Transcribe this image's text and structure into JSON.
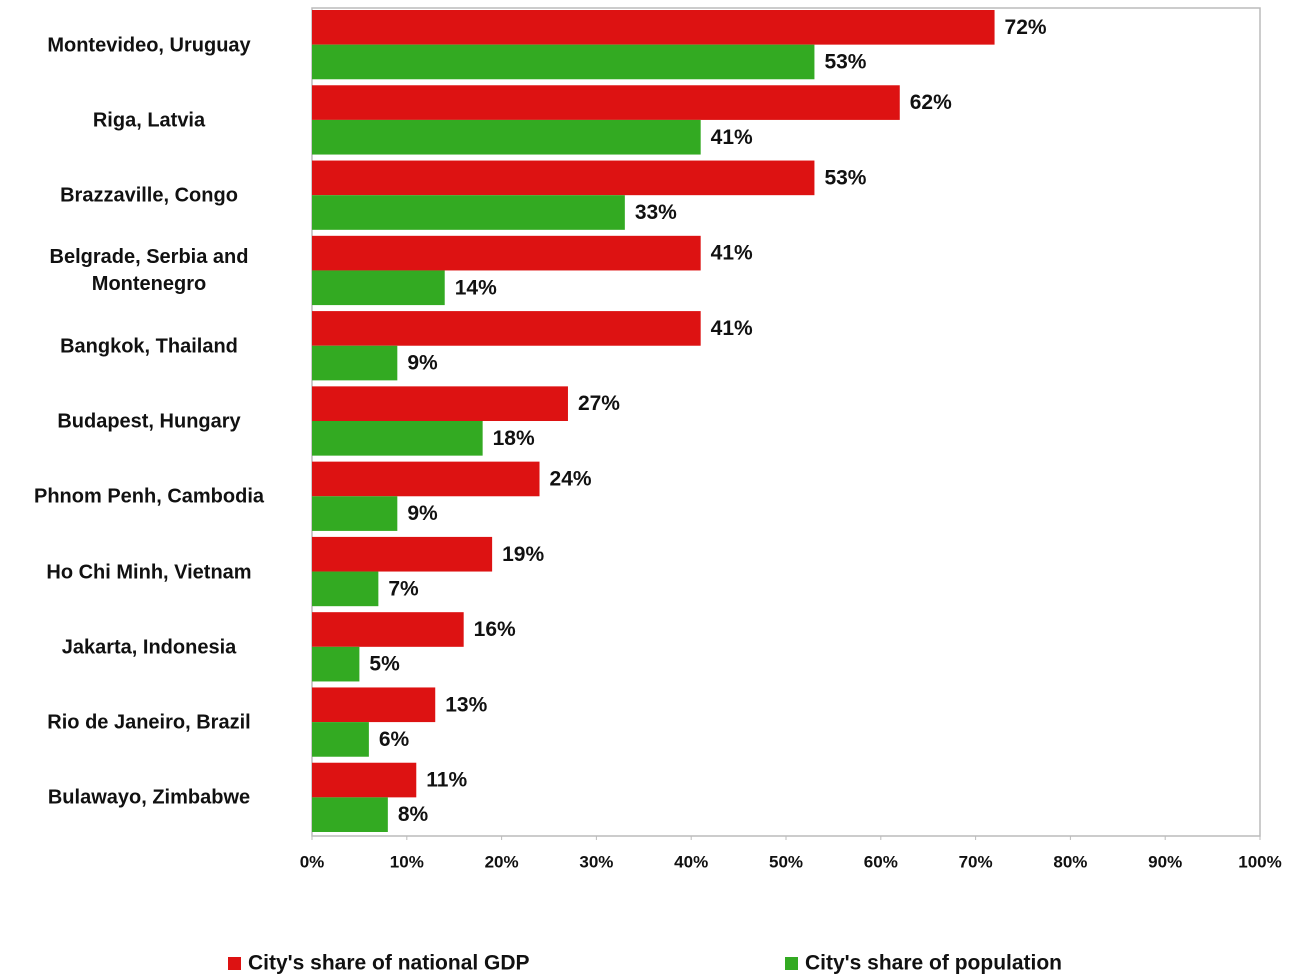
{
  "chart_data": {
    "type": "bar",
    "orientation": "horizontal",
    "categories": [
      "Montevideo, Uruguay",
      "Riga, Latvia",
      "Brazzaville, Congo",
      "Belgrade, Serbia and Montenegro",
      "Bangkok, Thailand",
      "Budapest, Hungary",
      "Phnom Penh, Cambodia",
      "Ho Chi Minh, Vietnam",
      "Jakarta, Indonesia",
      "Rio de Janeiro, Brazil",
      "Bulawayo, Zimbabwe"
    ],
    "series": [
      {
        "name": "City's share of national GDP",
        "color": "#dd1212",
        "values": [
          72,
          62,
          53,
          41,
          41,
          27,
          24,
          19,
          16,
          13,
          11
        ],
        "value_labels": [
          "72%",
          "62%",
          "53%",
          "41%",
          "41%",
          "27%",
          "24%",
          "19%",
          "16%",
          "13%",
          "11%"
        ]
      },
      {
        "name": "City's share of population",
        "color": "#33aa22",
        "values": [
          53,
          41,
          33,
          14,
          9,
          18,
          9,
          7,
          5,
          6,
          8
        ],
        "value_labels": [
          "53%",
          "41%",
          "33%",
          "14%",
          "9%",
          "18%",
          "9%",
          "7%",
          "5%",
          "6%",
          "8%"
        ]
      }
    ],
    "xlim": [
      0,
      100
    ],
    "xticks": [
      {
        "value": 0,
        "label": "0%"
      },
      {
        "value": 10,
        "label": "10%"
      },
      {
        "value": 20,
        "label": "20%"
      },
      {
        "value": 30,
        "label": "30%"
      },
      {
        "value": 40,
        "label": "40%"
      },
      {
        "value": 50,
        "label": "50%"
      },
      {
        "value": 60,
        "label": "60%"
      },
      {
        "value": 70,
        "label": "70%"
      },
      {
        "value": 80,
        "label": "80%"
      },
      {
        "value": 90,
        "label": "90%"
      },
      {
        "value": 100,
        "label": "100%"
      }
    ],
    "grid": false,
    "legend": "bottom"
  }
}
